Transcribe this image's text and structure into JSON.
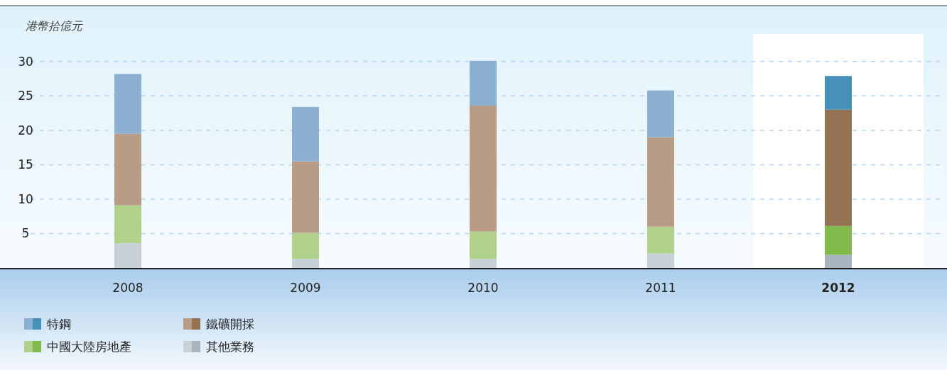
{
  "chart_data": {
    "type": "bar",
    "stacked": true,
    "ylabel": "港幣拾億元",
    "categories": [
      "2008",
      "2009",
      "2010",
      "2011",
      "2012"
    ],
    "series": [
      {
        "name": "其他業務",
        "colors": [
          "#c9d1d8",
          "#c9d1d8",
          "#c9d1d8",
          "#c9d1d8",
          "#a8b4bd"
        ],
        "values": [
          3.6,
          1.3,
          1.3,
          2.1,
          1.9
        ]
      },
      {
        "name": "中國大陸房地產",
        "colors": [
          "#b1d08c",
          "#b1d08c",
          "#b1d08c",
          "#b1d08c",
          "#80ba4a"
        ],
        "values": [
          5.5,
          3.8,
          4.0,
          3.9,
          4.2
        ]
      },
      {
        "name": "鐵礦開採",
        "colors": [
          "#b89c86",
          "#b89c86",
          "#b89c86",
          "#b89c86",
          "#937153"
        ],
        "values": [
          10.4,
          10.4,
          18.3,
          13.0,
          16.9
        ]
      },
      {
        "name": "特鋼",
        "colors": [
          "#8cb0d2",
          "#8cb0d2",
          "#8cb0d2",
          "#8cb0d2",
          "#4690b9"
        ],
        "values": [
          8.7,
          7.9,
          6.5,
          6.8,
          4.9
        ]
      }
    ],
    "ylim": [
      0,
      34
    ],
    "yticks": [
      5,
      10,
      15,
      20,
      25,
      30
    ],
    "grid": "y",
    "legend": "bottom",
    "bands": [
      {
        "axis": "x",
        "from": "2012",
        "to": "2012",
        "color": "#ffffff"
      }
    ]
  }
}
